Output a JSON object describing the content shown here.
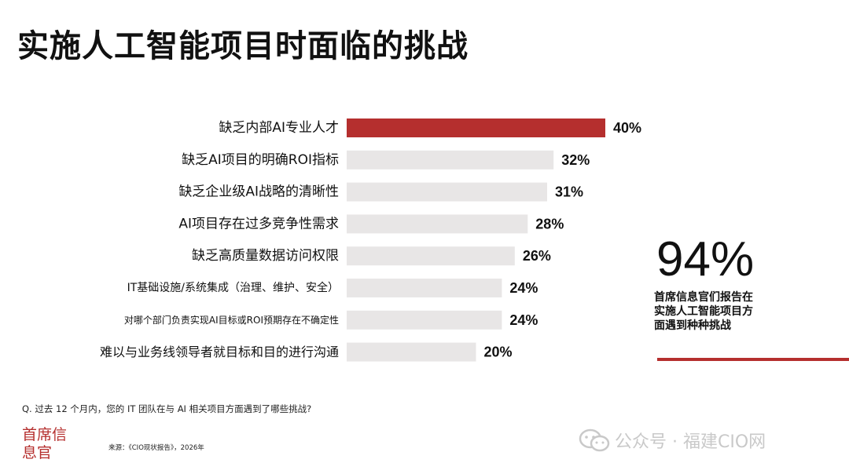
{
  "title": "实施人工智能项目时面临的挑战",
  "chart_data": {
    "type": "bar",
    "orientation": "horizontal",
    "categories": [
      "缺乏内部AI专业人才",
      "缺乏AI项目的明确ROI指标",
      "缺乏企业级AI战略的清晰性",
      "AI项目存在过多竞争性需求",
      "缺乏高质量数据访问权限",
      "IT基础设施/系统集成（治理、维护、安全）",
      "对哪个部门负责实现AI目标或ROI预期存在不确定性",
      "难以与业务线领导者就目标和目的进行沟通"
    ],
    "values": [
      40,
      32,
      31,
      28,
      26,
      24,
      24,
      20
    ],
    "value_labels": [
      "40%",
      "32%",
      "31%",
      "28%",
      "26%",
      "24%",
      "24%",
      "20%"
    ],
    "highlight_index": 0,
    "colors": {
      "highlight": "#b52f2e",
      "default": "#e8e6e6"
    },
    "xlim": [
      0,
      40
    ],
    "grid": false
  },
  "stat": {
    "value": "94%",
    "description": "首席信息官们报告在实施人工智能项目方面遇到种种挑战"
  },
  "question": "Q. 过去 12 个月内，您的 IT 团队在与 AI 相关项目方面遇到了哪些挑战?",
  "logo_text": "首席信息官",
  "source": "来源：《CIO现状报告》，2026年",
  "watermark": "公众号 · 福建CIO网",
  "accent_color": "#b52f2e"
}
